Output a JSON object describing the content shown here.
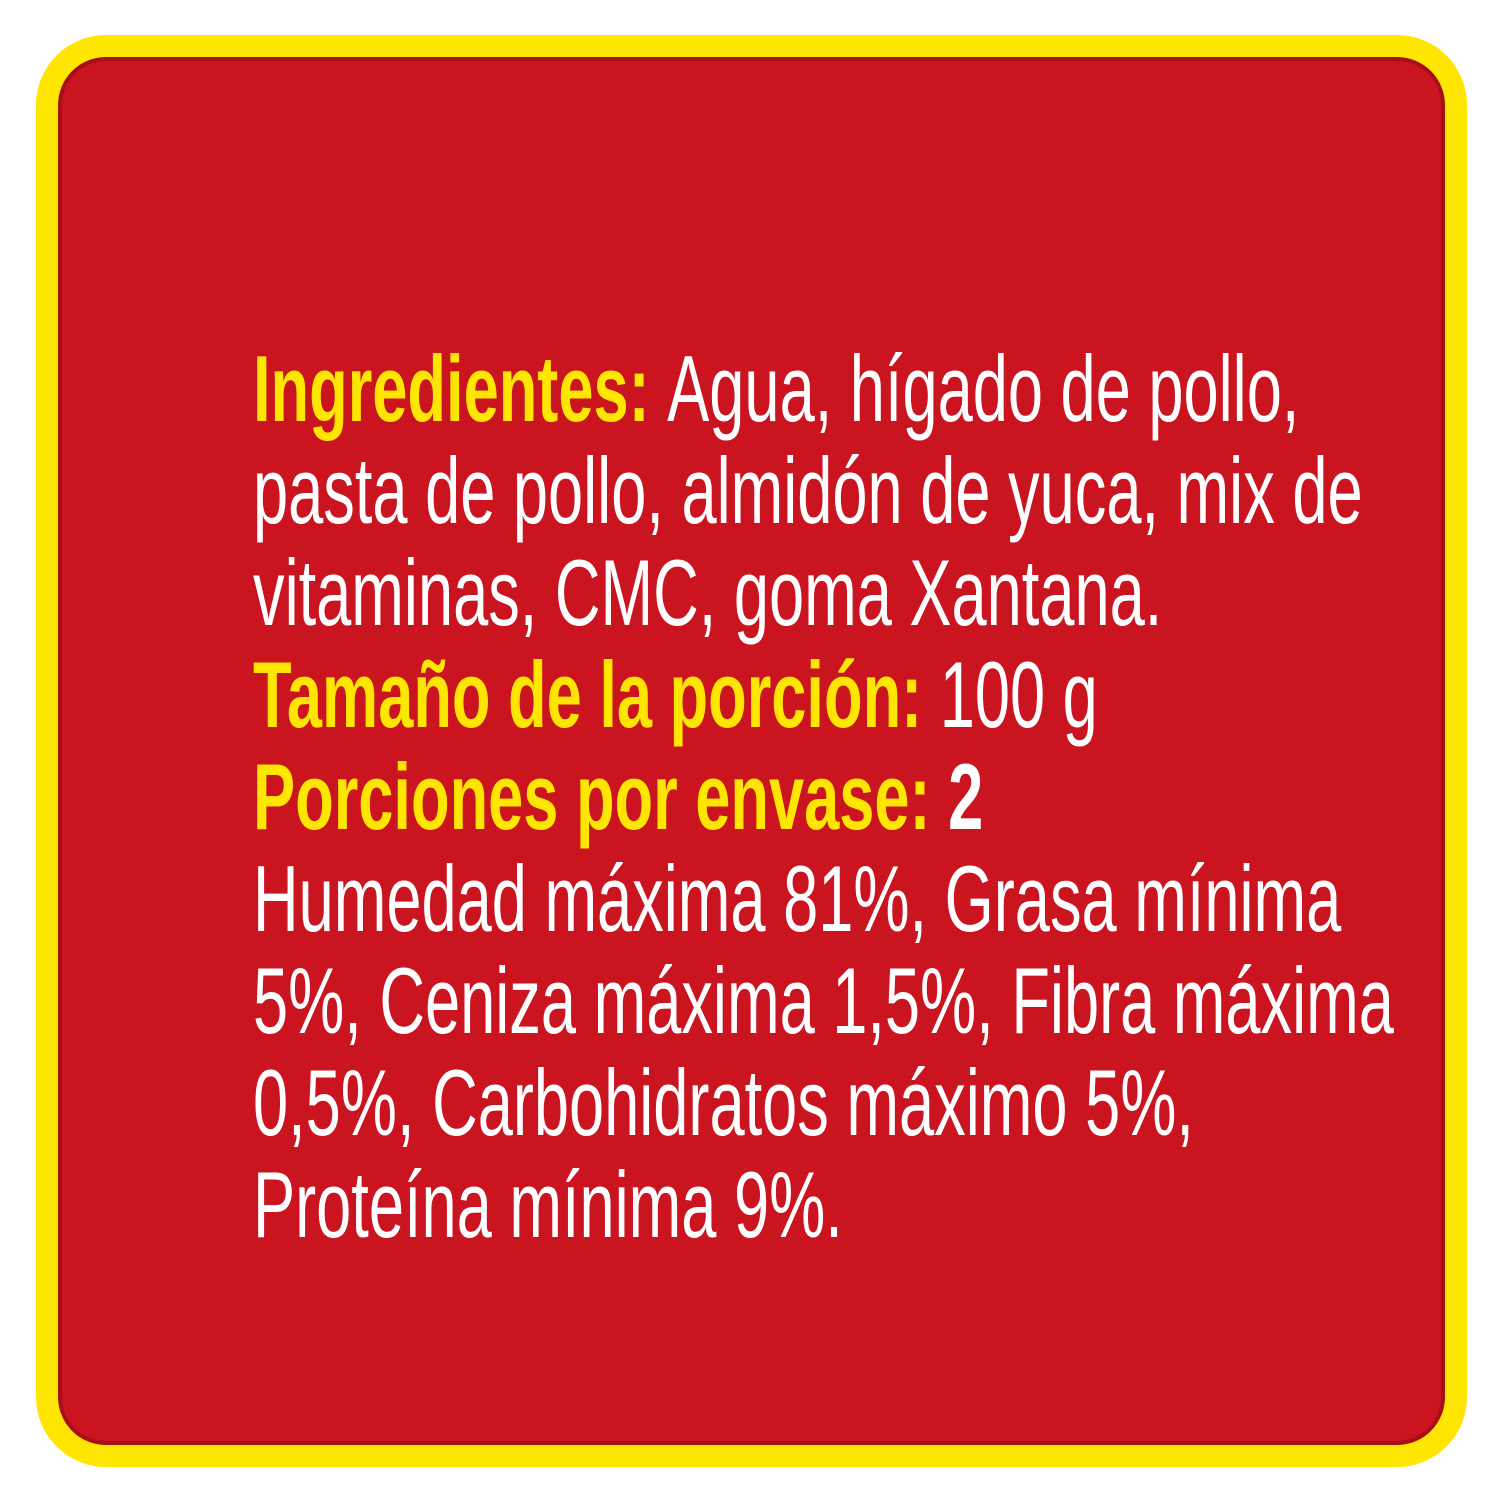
{
  "label": {
    "colors": {
      "page_background": "#ffffff",
      "card_red": "#ca1420",
      "border_yellow": "#ffe600",
      "heading_yellow": "#ffe600",
      "body_white": "#ffffff"
    },
    "lines": [
      {
        "segments": [
          {
            "text": "Ingredientes: ",
            "style": "heading"
          },
          {
            "text": "Agua, hígado de pollo,",
            "style": "body"
          }
        ]
      },
      {
        "segments": [
          {
            "text": "pasta de pollo, almidón de yuca, mix de",
            "style": "body"
          }
        ]
      },
      {
        "segments": [
          {
            "text": "vitaminas, CMC, goma Xantana.",
            "style": "body"
          }
        ]
      },
      {
        "segments": [
          {
            "text": "Tamaño de la porción: ",
            "style": "heading"
          },
          {
            "text": "100 g",
            "style": "body"
          }
        ]
      },
      {
        "segments": [
          {
            "text": "Porciones por envase: ",
            "style": "heading"
          },
          {
            "text": "2",
            "style": "body-bold"
          }
        ]
      },
      {
        "segments": [
          {
            "text": "Humedad máxima 81%, Grasa mínima",
            "style": "body"
          }
        ]
      },
      {
        "segments": [
          {
            "text": "5%, Ceniza máxima 1,5%, Fibra máxima",
            "style": "body"
          }
        ]
      },
      {
        "segments": [
          {
            "text": "0,5%, Carbohidratos máximo 5%,",
            "style": "body"
          }
        ]
      },
      {
        "segments": [
          {
            "text": "Proteína mínima 9%.",
            "style": "body"
          }
        ]
      }
    ]
  }
}
